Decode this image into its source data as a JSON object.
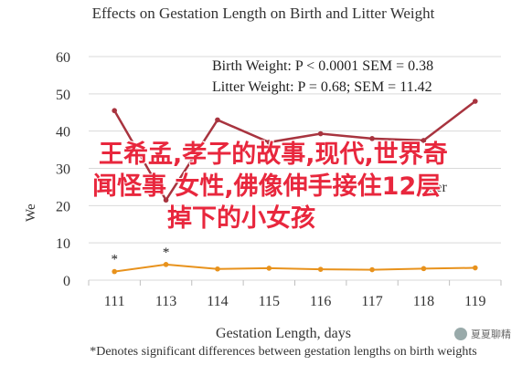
{
  "chart_data": {
    "type": "line",
    "title": "Effects on Gestation Length on Birth and Litter Weight",
    "xlabel": "Gestation Length, days",
    "ylabel": "We",
    "categories": [
      "111",
      "113",
      "114",
      "115",
      "116",
      "117",
      "118",
      "119"
    ],
    "ylim": [
      0,
      60
    ],
    "yticks": [
      0,
      10,
      20,
      30,
      40,
      50,
      60
    ],
    "grid": true,
    "series": [
      {
        "name": "Birth Weight",
        "color": "#e8921c",
        "values": [
          2.3,
          4.2,
          3.0,
          3.2,
          2.9,
          2.8,
          3.1,
          3.3
        ]
      },
      {
        "name": "Litter Weight",
        "color": "#a8343f",
        "values": [
          45.5,
          21.5,
          43.0,
          37.0,
          39.3,
          38.0,
          37.5,
          48.0
        ]
      }
    ],
    "annotations": [
      {
        "text": "Birth Weight: P < 0.0001 SEM = 0.38"
      },
      {
        "text": "Litter Weight: P = 0.68; SEM = 11.42"
      }
    ],
    "significance_marks": [
      {
        "category": "111",
        "text": "*"
      },
      {
        "category": "113",
        "text": "*"
      }
    ],
    "legend_partial": "itter",
    "footnote": "*Denotes significant differences between gestation lengths on birth weights"
  },
  "overlay": {
    "lines": [
      "王希孟,孝子的故事,现代,世界奇",
      "闻怪事 女性,佛像伸手接住12层",
      "掉下的小女孩"
    ],
    "color": "#e8273d"
  },
  "watermark": {
    "text": "夏夏聊精"
  }
}
